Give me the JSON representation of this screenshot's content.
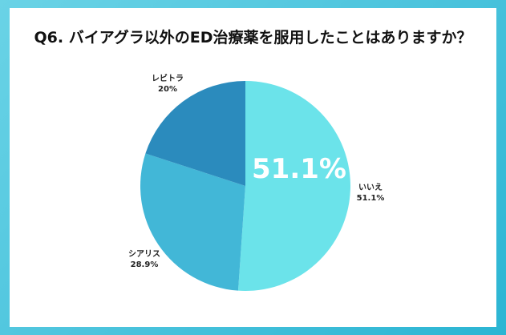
{
  "title": "Q6. バイアグラ以外のED治療薬を服用したことはありますか？",
  "chart_data": {
    "type": "pie",
    "title": "Q6. バイアグラ以外のED治療薬を服用したことはありますか？",
    "slices": [
      {
        "label": "いいえ",
        "value": 51.1,
        "value_label": "51.1%",
        "color": "#6be3ea"
      },
      {
        "label": "シアリス",
        "value": 28.9,
        "value_label": "28.9%",
        "color": "#42b7d7"
      },
      {
        "label": "レビトラ",
        "value": 20,
        "value_label": "20%",
        "color": "#2b8bbd"
      }
    ],
    "highlight_label": "51.1%",
    "start_angle": "12 o'clock",
    "direction": "clockwise"
  }
}
